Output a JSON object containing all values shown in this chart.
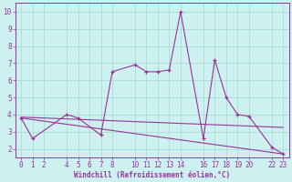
{
  "xlabel": "Windchill (Refroidissement éolien,°C)",
  "background_color": "#cdf0f0",
  "grid_color": "#aaddcc",
  "line_color": "#993399",
  "x_ticks": [
    0,
    1,
    2,
    4,
    5,
    6,
    7,
    8,
    10,
    11,
    12,
    13,
    14,
    16,
    17,
    18,
    19,
    20,
    22,
    23
  ],
  "ylim": [
    1.5,
    10.5
  ],
  "xlim": [
    -0.5,
    23.5
  ],
  "yticks": [
    2,
    3,
    4,
    5,
    6,
    7,
    8,
    9,
    10
  ],
  "x_series": [
    0,
    1,
    4,
    5,
    7,
    8,
    10,
    11,
    12,
    13,
    14,
    16,
    17,
    18,
    19,
    20,
    22,
    23
  ],
  "y_series": [
    3.8,
    2.6,
    4.0,
    3.8,
    2.8,
    6.5,
    6.9,
    6.5,
    6.5,
    6.6,
    10.0,
    2.6,
    7.2,
    5.0,
    4.0,
    3.9,
    2.1,
    1.7
  ],
  "trend1_x": [
    0,
    23
  ],
  "trend1_y": [
    3.85,
    3.25
  ],
  "trend2_x": [
    0,
    23
  ],
  "trend2_y": [
    3.8,
    1.7
  ],
  "xlabel_fontsize": 5.5,
  "tick_fontsize": 5.5
}
